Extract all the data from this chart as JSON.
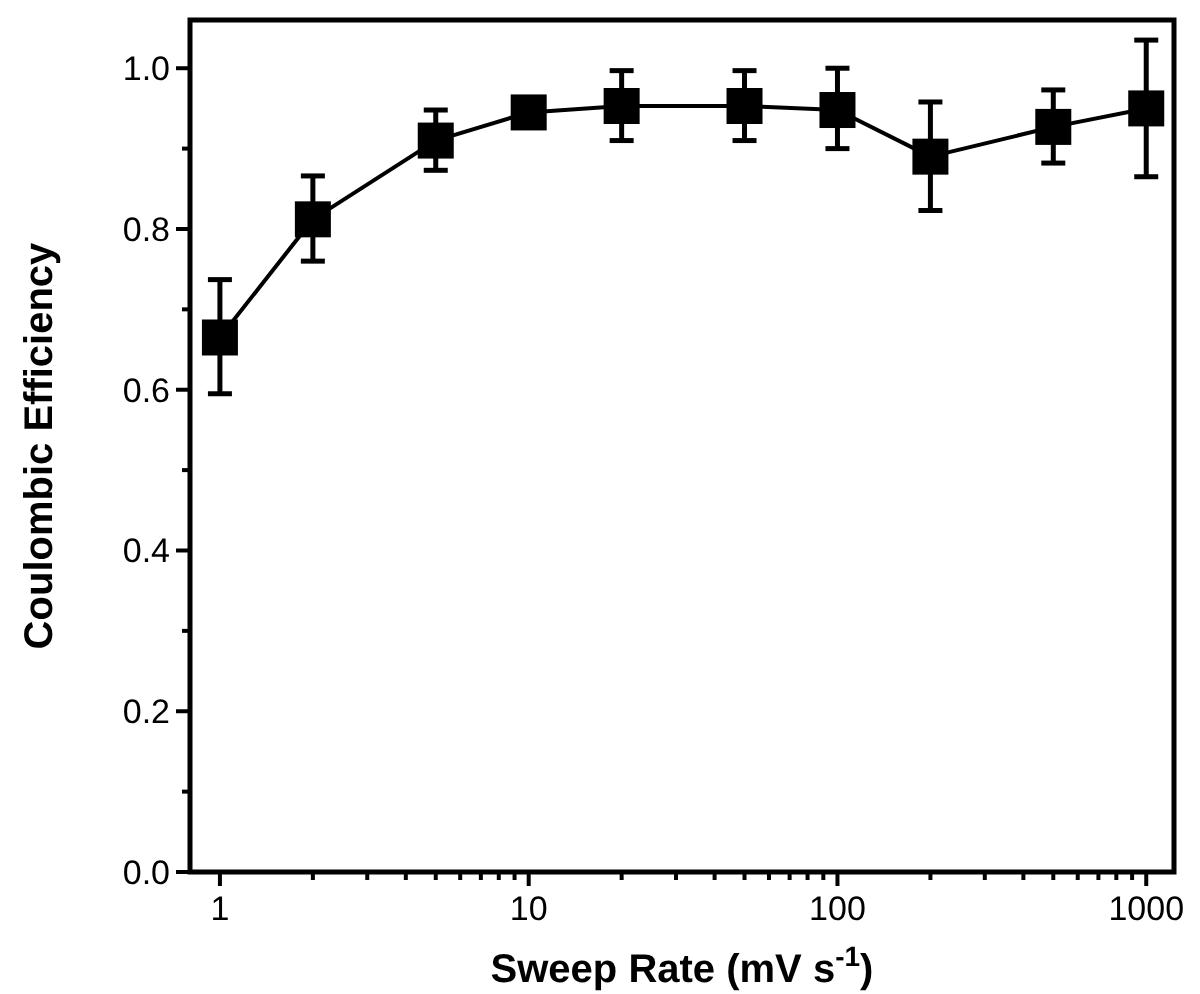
{
  "chart_data": {
    "type": "line",
    "xlabel": "Sweep Rate (mV s$^{-1}$)",
    "ylabel": "Coulombic Efficiency",
    "log": "x",
    "xlim": [
      0.8,
      1230
    ],
    "ylim": [
      0,
      1.06
    ],
    "xticks": [
      1,
      {
        "value": 2,
        "label": null
      },
      {
        "value": 3,
        "label": null
      },
      {
        "value": 4,
        "label": null
      },
      {
        "value": 5,
        "label": null
      },
      {
        "value": 6,
        "label": null
      },
      {
        "value": 7,
        "label": null
      },
      {
        "value": 8,
        "label": null
      },
      {
        "value": 9,
        "label": null
      },
      10,
      {
        "value": 20,
        "label": null
      },
      {
        "value": 30,
        "label": null
      },
      {
        "value": 40,
        "label": null
      },
      {
        "value": 50,
        "label": null
      },
      {
        "value": 60,
        "label": null
      },
      {
        "value": 70,
        "label": null
      },
      {
        "value": 80,
        "label": null
      },
      {
        "value": 90,
        "label": null
      },
      100,
      {
        "value": 200,
        "label": null
      },
      {
        "value": 300,
        "label": null
      },
      {
        "value": 400,
        "label": null
      },
      {
        "value": 500,
        "label": null
      },
      {
        "value": 600,
        "label": null
      },
      {
        "value": 700,
        "label": null
      },
      {
        "value": 800,
        "label": null
      },
      {
        "value": 900,
        "label": null
      },
      1000
    ],
    "yticks": [
      {
        "value": 0,
        "label": "0.0"
      },
      {
        "value": 0.1,
        "label": null
      },
      0.2,
      {
        "value": 0.3,
        "label": null
      },
      0.4,
      {
        "value": 0.5,
        "label": null
      },
      0.6,
      {
        "value": 0.7,
        "label": null
      },
      0.8,
      {
        "value": 0.9,
        "label": null
      },
      {
        "value": 1,
        "label": "1.0"
      }
    ],
    "marker": "square",
    "line_style": "solid",
    "grid": false,
    "series": [
      {
        "color": "#000000",
        "x": [
          1,
          2,
          5,
          10,
          20,
          50,
          100,
          200,
          500,
          1000
        ],
        "values": [
          0.665,
          0.812,
          0.91,
          0.945,
          0.953,
          0.953,
          0.948,
          0.89,
          0.927,
          0.95
        ],
        "errors": [
          [
            0.595,
            0.737
          ],
          [
            0.76,
            0.866
          ],
          [
            0.873,
            0.948
          ],
          [
            0.93,
            0.96
          ],
          [
            0.91,
            0.997
          ],
          [
            0.91,
            0.997
          ],
          [
            0.9,
            1.0
          ],
          [
            0.823,
            0.958
          ],
          [
            0.882,
            0.973
          ],
          [
            0.865,
            1.035
          ]
        ]
      }
    ]
  }
}
